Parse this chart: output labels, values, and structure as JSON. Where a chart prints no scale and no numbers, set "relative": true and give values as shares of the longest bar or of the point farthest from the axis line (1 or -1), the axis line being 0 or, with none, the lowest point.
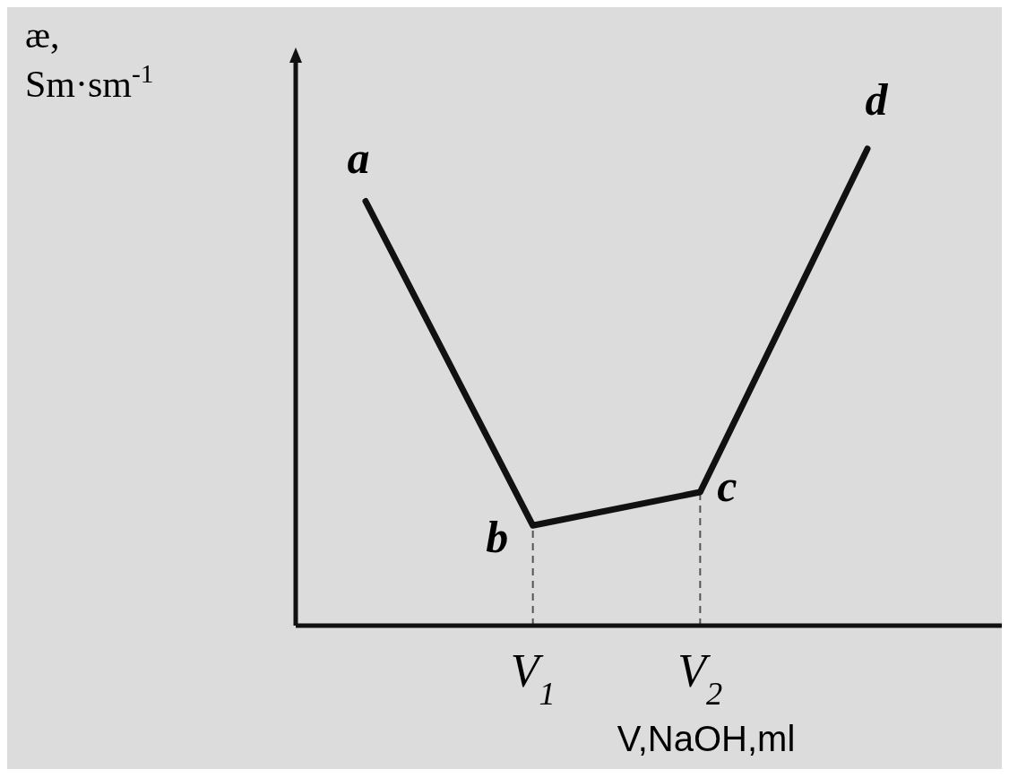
{
  "chart_data": {
    "type": "line",
    "relative": true,
    "ylabel": "æ,\nSm·sm$^{-1}$",
    "xlabel": "V,NaOH,ml",
    "categories": [
      null,
      "V$_{1}$",
      "V$_{2}$",
      null
    ],
    "series": [
      {
        "color": "#111111",
        "values": [
          0.89,
          0.21,
          0.28,
          1
        ]
      }
    ],
    "ref_lines": [
      {
        "axis": "x",
        "value": "V$_{1}$",
        "line_style": "dashed"
      },
      {
        "axis": "x",
        "value": "V$_{2}$",
        "line_style": "dashed"
      }
    ],
    "annotations": [
      "a",
      {
        "text": "b",
        "x": "V$_{1}$",
        "y": 0.21
      },
      {
        "text": "c",
        "x": "V$_{2}$",
        "y": 0.28
      },
      "d"
    ],
    "marker": "none",
    "line_style": "solid"
  }
}
